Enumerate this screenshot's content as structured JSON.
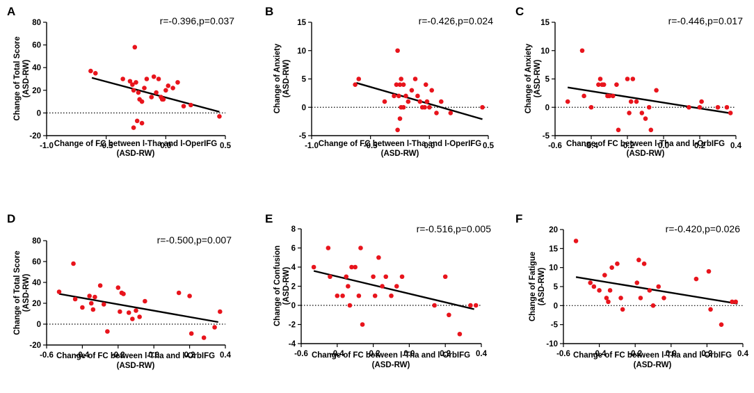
{
  "chart_data": [
    {
      "type": "scatter",
      "panel": "A",
      "stat": "r=-0.396,p=0.037",
      "ylabel_lines": [
        "Change of Total Score",
        "(ASD-RW)"
      ],
      "xlabel_lines": [
        "Change of FC between l-Tha and l-OperIFG",
        "(ASD-RW)"
      ],
      "xlim": [
        -1.0,
        0.5
      ],
      "xticks": [
        -1.0,
        -0.5,
        0.0,
        0.5
      ],
      "xtick_labels": [
        "-1.0",
        "-0.5",
        "0.0",
        "0.5"
      ],
      "ylim": [
        -20,
        80
      ],
      "yticks": [
        -20,
        0,
        20,
        40,
        60,
        80
      ],
      "ytick_labels": [
        "-20",
        "0",
        "20",
        "40",
        "60",
        "80"
      ],
      "reference_line_y": 0,
      "fit_line": {
        "x": [
          -0.62,
          0.45
        ],
        "y": [
          31,
          1
        ]
      },
      "points": {
        "x": [
          -0.63,
          -0.59,
          -0.36,
          -0.3,
          -0.28,
          -0.27,
          -0.26,
          -0.25,
          -0.23,
          -0.22,
          -0.2,
          -0.18,
          -0.16,
          -0.12,
          -0.1,
          -0.08,
          -0.06,
          -0.04,
          -0.03,
          -0.02,
          0.0,
          0.02,
          0.06,
          0.1,
          0.15,
          0.21,
          0.45,
          -0.27,
          -0.2,
          -0.24
        ],
        "y": [
          37,
          35,
          30,
          28,
          25,
          20,
          58,
          27,
          18,
          12,
          10,
          22,
          30,
          14,
          32,
          18,
          30,
          14,
          12,
          12,
          20,
          24,
          22,
          27,
          6,
          7,
          -3,
          -13,
          -9,
          -7
        ]
      }
    },
    {
      "type": "scatter",
      "panel": "B",
      "stat": "r=-0.426,p=0.024",
      "ylabel_lines": [
        "Change of Anxiety",
        "(ASD-RW)"
      ],
      "xlabel_lines": [
        "Change of FC between l-Tha and l-OperIFG",
        "(ASD-RW)"
      ],
      "xlim": [
        -1.0,
        0.5
      ],
      "xticks": [
        -1.0,
        -0.5,
        0.0,
        0.5
      ],
      "xtick_labels": [
        "-1.0",
        "-0.5",
        "0.0",
        "0.5"
      ],
      "ylim": [
        -5,
        15
      ],
      "yticks": [
        -5,
        0,
        5,
        10,
        15
      ],
      "ytick_labels": [
        "-5",
        "0",
        "5",
        "10",
        "15"
      ],
      "reference_line_y": 0,
      "fit_line": {
        "x": [
          -0.62,
          0.45
        ],
        "y": [
          4.3,
          -2.1
        ]
      },
      "points": {
        "x": [
          -0.63,
          -0.6,
          -0.38,
          -0.3,
          -0.28,
          -0.27,
          -0.26,
          -0.25,
          -0.24,
          -0.24,
          -0.22,
          -0.2,
          -0.18,
          -0.15,
          -0.12,
          -0.1,
          -0.08,
          -0.06,
          -0.04,
          -0.03,
          -0.02,
          0.0,
          0.02,
          0.06,
          0.1,
          0.18,
          0.45,
          -0.27,
          -0.25,
          -0.22
        ],
        "y": [
          4,
          5,
          1,
          2,
          4,
          10,
          2,
          4,
          0,
          5,
          4,
          2,
          1,
          3,
          5,
          2,
          1,
          0,
          0,
          4,
          1,
          0,
          3,
          -1,
          1,
          -1,
          0,
          -4,
          -2,
          0
        ]
      }
    },
    {
      "type": "scatter",
      "panel": "C",
      "stat": "r=-0.446,p=0.017",
      "ylabel_lines": [
        "Change of Anxiety",
        "(ASD-RW)"
      ],
      "xlabel_lines": [
        "Change of FC between l-Tha and l-OrbIFG",
        "(ASD-RW)"
      ],
      "xlim": [
        -0.6,
        0.4
      ],
      "xticks": [
        -0.6,
        -0.4,
        -0.2,
        0.0,
        0.2,
        0.4
      ],
      "xtick_labels": [
        "-0.6",
        "-0.4",
        "-0.2",
        "0.0",
        "0.2",
        "0.4"
      ],
      "ylim": [
        -5,
        15
      ],
      "yticks": [
        -5,
        0,
        5,
        10,
        15
      ],
      "ytick_labels": [
        "-5",
        "0",
        "5",
        "10",
        "15"
      ],
      "reference_line_y": 0,
      "fit_line": {
        "x": [
          -0.53,
          0.38
        ],
        "y": [
          3.5,
          -1.1
        ]
      },
      "points": {
        "x": [
          -0.53,
          -0.45,
          -0.44,
          -0.4,
          -0.36,
          -0.35,
          -0.34,
          -0.33,
          -0.31,
          -0.3,
          -0.28,
          -0.26,
          -0.2,
          -0.19,
          -0.18,
          -0.17,
          -0.15,
          -0.12,
          -0.1,
          -0.08,
          -0.07,
          -0.04,
          0.14,
          0.2,
          0.21,
          0.3,
          0.35,
          0.37,
          -0.25
        ],
        "y": [
          1,
          10,
          2,
          0,
          4,
          5,
          4,
          4,
          2,
          2,
          2,
          4,
          5,
          -1,
          1,
          5,
          1,
          -1,
          -2,
          0,
          -4,
          3,
          0,
          0,
          1,
          0,
          0,
          -1,
          -4
        ]
      }
    },
    {
      "type": "scatter",
      "panel": "D",
      "stat": "r=-0.500,p=0.007",
      "ylabel_lines": [
        "Change of Total Score",
        "(ASD-RW)"
      ],
      "xlabel_lines": [
        "Change of FC between l-Tha and l-OrbIFG",
        "(ASD-RW)"
      ],
      "xlim": [
        -0.6,
        0.4
      ],
      "xticks": [
        -0.6,
        -0.4,
        -0.2,
        0.0,
        0.2,
        0.4
      ],
      "xtick_labels": [
        "-0.6",
        "-0.4",
        "-0.2",
        "0.0",
        "0.2",
        "0.4"
      ],
      "ylim": [
        -20,
        80
      ],
      "yticks": [
        -20,
        0,
        20,
        40,
        60,
        80
      ],
      "ytick_labels": [
        "-20",
        "0",
        "20",
        "40",
        "60",
        "80"
      ],
      "reference_line_y": 0,
      "fit_line": {
        "x": [
          -0.53,
          0.36
        ],
        "y": [
          29,
          2
        ]
      },
      "points": {
        "x": [
          -0.53,
          -0.45,
          -0.44,
          -0.4,
          -0.36,
          -0.35,
          -0.34,
          -0.33,
          -0.3,
          -0.28,
          -0.26,
          -0.2,
          -0.19,
          -0.18,
          -0.17,
          -0.14,
          -0.12,
          -0.1,
          -0.08,
          -0.05,
          0.14,
          0.2,
          0.21,
          0.28,
          0.34,
          0.37
        ],
        "y": [
          31,
          58,
          24,
          16,
          27,
          20,
          14,
          26,
          37,
          19,
          -7,
          35,
          12,
          30,
          29,
          11,
          5,
          13,
          7,
          22,
          30,
          27,
          -9,
          -13,
          -3,
          12
        ]
      }
    },
    {
      "type": "scatter",
      "panel": "E",
      "stat": "r=-0.516,p=0.005",
      "ylabel_lines": [
        "Change of Confusion",
        "(ASD-RW)"
      ],
      "xlabel_lines": [
        "Change of FC between l-Tha and l-OrbIFG",
        "(ASD-RW)"
      ],
      "xlim": [
        -0.6,
        0.4
      ],
      "xticks": [
        -0.6,
        -0.4,
        -0.2,
        0.0,
        0.2,
        0.4
      ],
      "xtick_labels": [
        "-0.6",
        "-0.4",
        "-0.2",
        "0.0",
        "0.2",
        "0.4"
      ],
      "ylim": [
        -4,
        8
      ],
      "yticks": [
        -4,
        -2,
        0,
        2,
        4,
        6,
        8
      ],
      "ytick_labels": [
        "-4",
        "-2",
        "0",
        "2",
        "4",
        "6",
        "8"
      ],
      "reference_line_y": 0,
      "fit_line": {
        "x": [
          -0.53,
          0.36
        ],
        "y": [
          3.6,
          -0.4
        ]
      },
      "points": {
        "x": [
          -0.53,
          -0.45,
          -0.44,
          -0.4,
          -0.37,
          -0.35,
          -0.34,
          -0.33,
          -0.32,
          -0.3,
          -0.28,
          -0.27,
          -0.26,
          -0.2,
          -0.19,
          -0.17,
          -0.15,
          -0.13,
          -0.1,
          -0.07,
          -0.04,
          0.14,
          0.2,
          0.22,
          0.28,
          0.34,
          0.37
        ],
        "y": [
          4,
          6,
          3,
          1,
          1,
          3,
          2,
          0,
          4,
          4,
          1,
          6,
          -2,
          3,
          1,
          5,
          2,
          3,
          1,
          2,
          3,
          0,
          3,
          -1,
          -3,
          0,
          0
        ]
      }
    },
    {
      "type": "scatter",
      "panel": "F",
      "stat": "r=-0.420,p=0.026",
      "ylabel_lines": [
        "Change of Fatigue",
        "(ASD-RW)"
      ],
      "xlabel_lines": [
        "Change of FC between l-Tha and l-OrbIFG",
        "(ASD-RW)"
      ],
      "xlim": [
        -0.6,
        0.4
      ],
      "xticks": [
        -0.6,
        -0.4,
        -0.2,
        0.0,
        0.2,
        0.4
      ],
      "xtick_labels": [
        "-0.6",
        "-0.4",
        "-0.2",
        "0.0",
        "0.2",
        "0.4"
      ],
      "ylim": [
        -10,
        20
      ],
      "yticks": [
        -10,
        -5,
        0,
        5,
        10,
        15,
        20
      ],
      "ytick_labels": [
        "-10",
        "-5",
        "0",
        "5",
        "10",
        "15",
        "20"
      ],
      "reference_line_y": 0,
      "fit_line": {
        "x": [
          -0.53,
          0.37
        ],
        "y": [
          7.5,
          0.5
        ]
      },
      "points": {
        "x": [
          -0.53,
          -0.45,
          -0.43,
          -0.4,
          -0.37,
          -0.36,
          -0.35,
          -0.34,
          -0.33,
          -0.3,
          -0.28,
          -0.27,
          -0.19,
          -0.18,
          -0.17,
          -0.15,
          -0.12,
          -0.1,
          -0.07,
          -0.04,
          0.14,
          0.21,
          0.22,
          0.28,
          0.34,
          0.36
        ],
        "y": [
          17,
          6,
          5,
          4,
          8,
          2,
          1,
          4,
          10,
          11,
          2,
          -1,
          6,
          12,
          2,
          11,
          4,
          0,
          5,
          2,
          7,
          9,
          -1,
          -5,
          1,
          1
        ]
      }
    }
  ]
}
